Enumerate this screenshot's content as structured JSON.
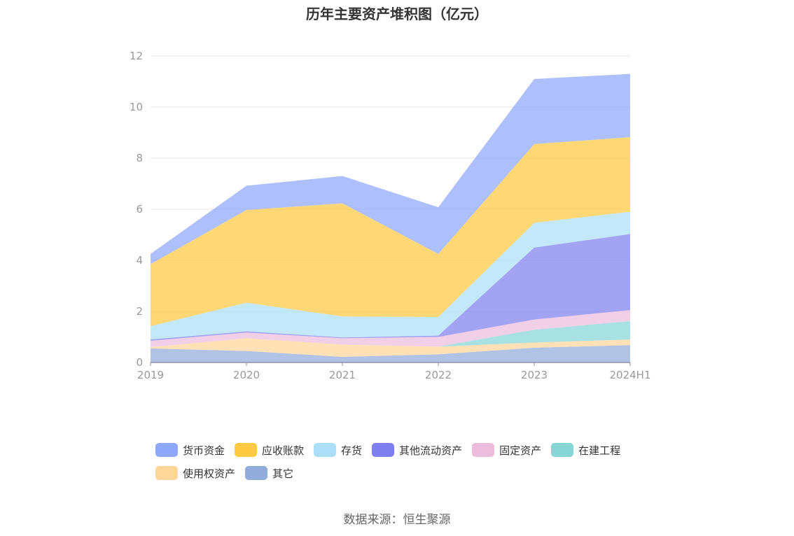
{
  "chart_data": {
    "type": "area",
    "stacked": true,
    "title": "历年主要资产堆积图（亿元）",
    "x": [
      "2019",
      "2020",
      "2021",
      "2022",
      "2023",
      "2024H1"
    ],
    "ylim": [
      0,
      12
    ],
    "yticks": [
      "0",
      "2",
      "4",
      "6",
      "8",
      "10",
      "12"
    ],
    "grid": true,
    "legend_position": "bottom",
    "series": [
      {
        "name": "其它",
        "color": "#91acdb",
        "values": [
          0.55,
          0.45,
          0.22,
          0.32,
          0.58,
          0.68
        ]
      },
      {
        "name": "使用权资产",
        "color": "#ffd699",
        "values": [
          0.05,
          0.5,
          0.48,
          0.3,
          0.2,
          0.22
        ]
      },
      {
        "name": "在建工程",
        "color": "#87d6d6",
        "values": [
          0.0,
          0.0,
          0.0,
          0.0,
          0.5,
          0.72
        ]
      },
      {
        "name": "固定资产",
        "color": "#ecbcdc",
        "values": [
          0.25,
          0.22,
          0.25,
          0.38,
          0.4,
          0.43
        ]
      },
      {
        "name": "其他流动资产",
        "color": "#7f7ff0",
        "values": [
          0.05,
          0.05,
          0.03,
          0.05,
          2.82,
          2.98
        ]
      },
      {
        "name": "存货",
        "color": "#aadff7",
        "values": [
          0.52,
          1.12,
          0.82,
          0.73,
          0.97,
          0.87
        ]
      },
      {
        "name": "应收账款",
        "color": "#ffc941",
        "values": [
          2.43,
          3.63,
          4.43,
          2.47,
          3.08,
          2.92
        ]
      },
      {
        "name": "货币资金",
        "color": "#8ea8fb",
        "values": [
          0.4,
          0.95,
          1.07,
          1.83,
          2.55,
          2.48
        ]
      }
    ]
  },
  "legend_order": [
    {
      "label": "货币资金",
      "color": "#8ea8fb"
    },
    {
      "label": "应收账款",
      "color": "#ffc941"
    },
    {
      "label": "存货",
      "color": "#aadff7"
    },
    {
      "label": "其他流动资产",
      "color": "#7f7ff0"
    },
    {
      "label": "固定资产",
      "color": "#ecbcdc"
    },
    {
      "label": "在建工程",
      "color": "#87d6d6"
    },
    {
      "label": "使用权资产",
      "color": "#ffd699"
    },
    {
      "label": "其它",
      "color": "#91acdb"
    }
  ],
  "source": "数据来源：恒生聚源"
}
